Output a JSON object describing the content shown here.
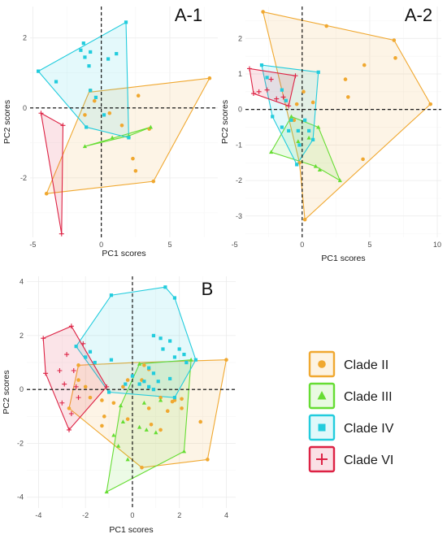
{
  "figure": {
    "legend": [
      {
        "label": "Clade II",
        "color": "#f0a830",
        "marker": "circle"
      },
      {
        "label": "Clade III",
        "color": "#66dd33",
        "marker": "triangle"
      },
      {
        "label": "Clade IV",
        "color": "#22ccdd",
        "marker": "square"
      },
      {
        "label": "Clade VI",
        "color": "#dd2244",
        "marker": "plus"
      }
    ]
  },
  "chart_data": [
    {
      "type": "scatter",
      "title": "A-1",
      "xlabel": "PC1 scores",
      "ylabel": "PC2 scores",
      "xlim": [
        -5.2,
        8.5
      ],
      "ylim": [
        -3.7,
        2.9
      ],
      "xticks": [
        -5,
        0,
        5
      ],
      "yticks": [
        -2,
        0,
        2
      ],
      "grid": true,
      "series": [
        {
          "name": "Clade II",
          "hull": [
            [
              -4,
              -2.45
            ],
            [
              3.8,
              -2.1
            ],
            [
              7.9,
              0.85
            ],
            [
              -0.9,
              0.45
            ]
          ],
          "points": [
            [
              7.9,
              0.85
            ],
            [
              2.7,
              0.35
            ],
            [
              3.5,
              -0.6
            ],
            [
              2.3,
              -1.45
            ],
            [
              2.5,
              -1.8
            ],
            [
              0.6,
              -0.15
            ],
            [
              -0.5,
              0.2
            ],
            [
              -1.2,
              -0.2
            ],
            [
              1.5,
              -0.5
            ],
            [
              -0.8,
              0.5
            ],
            [
              3.8,
              -2.1
            ],
            [
              -4,
              -2.45
            ]
          ]
        },
        {
          "name": "Clade III",
          "hull": [
            [
              -1.2,
              -1.1
            ],
            [
              3.6,
              -0.55
            ],
            [
              2.0,
              -0.8
            ]
          ],
          "points": [
            [
              -1.2,
              -1.1
            ],
            [
              3.6,
              -0.55
            ],
            [
              2.0,
              -0.8
            ],
            [
              0.8,
              -0.85
            ]
          ]
        },
        {
          "name": "Clade IV",
          "hull": [
            [
              -4.6,
              1.05
            ],
            [
              1.8,
              2.45
            ],
            [
              2.0,
              -0.85
            ],
            [
              -1.1,
              -0.55
            ]
          ],
          "points": [
            [
              -4.6,
              1.05
            ],
            [
              1.8,
              2.45
            ],
            [
              -1.3,
              1.85
            ],
            [
              -1.5,
              1.65
            ],
            [
              -1.2,
              1.45
            ],
            [
              -0.8,
              1.6
            ],
            [
              0.5,
              1.4
            ],
            [
              1.1,
              1.55
            ],
            [
              -3.3,
              0.75
            ],
            [
              -0.8,
              0.5
            ],
            [
              -0.4,
              0.3
            ],
            [
              0.2,
              -0.2
            ],
            [
              2.0,
              -0.85
            ],
            [
              -1.1,
              -0.55
            ],
            [
              -0.9,
              1.2
            ]
          ]
        },
        {
          "name": "Clade VI",
          "hull": [
            [
              -4.4,
              -0.15
            ],
            [
              -2.8,
              -0.5
            ],
            [
              -2.9,
              -3.6
            ]
          ],
          "points": [
            [
              -4.4,
              -0.15
            ],
            [
              -2.8,
              -0.5
            ],
            [
              -2.9,
              -3.6
            ]
          ]
        }
      ]
    },
    {
      "type": "scatter",
      "title": "A-2",
      "xlabel": "PC1 scores",
      "ylabel": "PC2 scores",
      "xlim": [
        -4.2,
        10.3
      ],
      "ylim": [
        -3.6,
        2.9
      ],
      "xticks": [
        -5,
        0,
        5,
        10
      ],
      "yticks": [
        -3,
        -2,
        -1,
        0,
        1,
        2
      ],
      "grid": true,
      "series": [
        {
          "name": "Clade II",
          "hull": [
            [
              -2.9,
              2.75
            ],
            [
              6.8,
              1.95
            ],
            [
              9.5,
              0.15
            ],
            [
              0.2,
              -3.1
            ],
            [
              -0.2,
              -1.5
            ]
          ],
          "points": [
            [
              -2.9,
              2.75
            ],
            [
              1.8,
              2.35
            ],
            [
              6.8,
              1.95
            ],
            [
              6.9,
              1.45
            ],
            [
              4.6,
              1.25
            ],
            [
              3.2,
              0.85
            ],
            [
              9.5,
              0.15
            ],
            [
              3.4,
              0.35
            ],
            [
              4.5,
              -1.4
            ],
            [
              0.2,
              -3.1
            ],
            [
              -0.2,
              -1.5
            ],
            [
              0.1,
              0.5
            ],
            [
              -0.4,
              0.15
            ],
            [
              0.8,
              0.2
            ],
            [
              -0.6,
              -0.3
            ]
          ]
        },
        {
          "name": "Clade III",
          "hull": [
            [
              -2.3,
              -1.2
            ],
            [
              -0.8,
              -0.2
            ],
            [
              1.2,
              -0.5
            ],
            [
              2.8,
              -2.0
            ],
            [
              1.0,
              -1.6
            ]
          ],
          "points": [
            [
              -2.3,
              -1.2
            ],
            [
              -0.8,
              -0.2
            ],
            [
              1.2,
              -0.5
            ],
            [
              2.8,
              -2.0
            ],
            [
              1.0,
              -1.6
            ],
            [
              0.5,
              -0.8
            ],
            [
              -0.3,
              -0.9
            ],
            [
              1.3,
              -1.7
            ]
          ]
        },
        {
          "name": "Clade IV",
          "hull": [
            [
              -3.0,
              1.25
            ],
            [
              1.2,
              1.05
            ],
            [
              0.8,
              -0.85
            ],
            [
              -0.4,
              -1.55
            ],
            [
              -2.2,
              -0.2
            ]
          ],
          "points": [
            [
              -3.0,
              1.25
            ],
            [
              1.2,
              1.05
            ],
            [
              0.8,
              -0.85
            ],
            [
              -0.4,
              -1.55
            ],
            [
              -2.2,
              -0.2
            ],
            [
              -2.6,
              0.9
            ],
            [
              -1.5,
              0.55
            ],
            [
              -1.2,
              0.25
            ],
            [
              -0.8,
              -0.3
            ],
            [
              -1.5,
              -0.5
            ],
            [
              -1.0,
              -0.6
            ],
            [
              -0.3,
              -0.6
            ],
            [
              0.2,
              -0.3
            ],
            [
              0.5,
              -0.6
            ],
            [
              -0.2,
              -1.0
            ]
          ]
        },
        {
          "name": "Clade VI",
          "hull": [
            [
              -3.9,
              1.15
            ],
            [
              -0.5,
              0.95
            ],
            [
              -1.0,
              0.1
            ],
            [
              -3.6,
              0.45
            ]
          ],
          "points": [
            [
              -3.9,
              1.15
            ],
            [
              -0.5,
              0.95
            ],
            [
              -1.0,
              0.1
            ],
            [
              -3.6,
              0.45
            ],
            [
              -2.3,
              0.85
            ],
            [
              -1.9,
              0.3
            ],
            [
              -3.2,
              0.5
            ],
            [
              -1.4,
              0.35
            ],
            [
              -2.6,
              0.55
            ]
          ]
        }
      ]
    },
    {
      "type": "scatter",
      "title": "B",
      "xlabel": "PC1 scores",
      "ylabel": "PC2 scores",
      "xlim": [
        -4.5,
        4.4
      ],
      "ylim": [
        -4.4,
        4.2
      ],
      "xticks": [
        -4,
        -2,
        0,
        2,
        4
      ],
      "yticks": [
        -4,
        -2,
        0,
        2,
        4
      ],
      "grid": true,
      "series": [
        {
          "name": "Clade II",
          "hull": [
            [
              -2.7,
              -0.7
            ],
            [
              -2.3,
              0.9
            ],
            [
              0.1,
              1.0
            ],
            [
              4.0,
              1.1
            ],
            [
              3.2,
              -2.6
            ],
            [
              0.4,
              -2.9
            ]
          ],
          "points": [
            [
              -2.7,
              -0.7
            ],
            [
              -2.3,
              0.9
            ],
            [
              4.0,
              1.1
            ],
            [
              3.2,
              -2.6
            ],
            [
              0.4,
              -2.9
            ],
            [
              0.5,
              0.9
            ],
            [
              0.7,
              0.75
            ],
            [
              -0.2,
              0.35
            ],
            [
              0.4,
              0.35
            ],
            [
              -2.3,
              0.35
            ],
            [
              -2.0,
              0.1
            ],
            [
              -1.8,
              -0.3
            ],
            [
              -1.3,
              -0.4
            ],
            [
              -0.8,
              -0.5
            ],
            [
              -0.4,
              0.1
            ],
            [
              0.7,
              -0.7
            ],
            [
              1.2,
              -0.3
            ],
            [
              1.7,
              -0.45
            ],
            [
              1.8,
              -0.4
            ],
            [
              2.1,
              -0.35
            ],
            [
              2.1,
              -0.7
            ],
            [
              1.5,
              -0.8
            ],
            [
              -1.2,
              -1.0
            ],
            [
              -1.3,
              -1.35
            ],
            [
              -0.2,
              -1.1
            ],
            [
              1.2,
              -1.5
            ],
            [
              2.9,
              -1.2
            ],
            [
              0.8,
              -1.3
            ]
          ]
        },
        {
          "name": "Clade III",
          "hull": [
            [
              -1.1,
              -3.8
            ],
            [
              -0.5,
              -0.6
            ],
            [
              0.3,
              0.95
            ],
            [
              2.5,
              1.1
            ],
            [
              2.2,
              -2.3
            ]
          ],
          "points": [
            [
              -1.1,
              -3.8
            ],
            [
              -0.5,
              -0.6
            ],
            [
              0.3,
              0.95
            ],
            [
              2.5,
              1.1
            ],
            [
              2.2,
              -2.3
            ],
            [
              -0.4,
              -1.2
            ],
            [
              -0.8,
              -1.7
            ],
            [
              -0.6,
              -2.1
            ],
            [
              -0.2,
              -2.6
            ],
            [
              0.3,
              -1.4
            ],
            [
              0.6,
              -1.5
            ],
            [
              1.0,
              -1.6
            ],
            [
              0.5,
              -0.5
            ],
            [
              1.2,
              -0.4
            ]
          ]
        },
        {
          "name": "Clade IV",
          "hull": [
            [
              -2.4,
              1.6
            ],
            [
              -0.9,
              3.5
            ],
            [
              1.4,
              3.8
            ],
            [
              1.8,
              3.4
            ],
            [
              2.7,
              1.1
            ],
            [
              1.8,
              -0.3
            ],
            [
              -1.0,
              -0.1
            ]
          ],
          "points": [
            [
              -2.4,
              1.6
            ],
            [
              -0.9,
              3.5
            ],
            [
              1.4,
              3.8
            ],
            [
              1.8,
              3.4
            ],
            [
              2.7,
              1.1
            ],
            [
              1.8,
              -0.3
            ],
            [
              -1.0,
              -0.1
            ],
            [
              -2.0,
              1.2
            ],
            [
              -1.8,
              1.4
            ],
            [
              -1.6,
              1.0
            ],
            [
              -0.9,
              1.1
            ],
            [
              0.9,
              2.0
            ],
            [
              1.2,
              1.9
            ],
            [
              1.6,
              1.8
            ],
            [
              1.3,
              1.5
            ],
            [
              2.0,
              1.5
            ],
            [
              2.2,
              1.3
            ],
            [
              1.8,
              1.2
            ],
            [
              2.3,
              1.0
            ],
            [
              0.7,
              0.8
            ],
            [
              0.9,
              0.6
            ],
            [
              1.1,
              0.3
            ],
            [
              0.5,
              0.3
            ],
            [
              0.7,
              0.1
            ],
            [
              0.9,
              0.0
            ],
            [
              0.0,
              0.5
            ],
            [
              1.6,
              0.4
            ],
            [
              -0.3,
              0.2
            ],
            [
              0.3,
              0.2
            ]
          ]
        },
        {
          "name": "Clade VI",
          "hull": [
            [
              -3.8,
              1.9
            ],
            [
              -2.6,
              2.35
            ],
            [
              -1.1,
              0.1
            ],
            [
              -2.7,
              -1.5
            ],
            [
              -3.7,
              0.6
            ]
          ],
          "points": [
            [
              -3.8,
              1.9
            ],
            [
              -2.6,
              2.35
            ],
            [
              -1.1,
              0.1
            ],
            [
              -2.7,
              -1.5
            ],
            [
              -3.7,
              0.6
            ],
            [
              -2.8,
              1.3
            ],
            [
              -2.1,
              1.7
            ],
            [
              -2.5,
              0.7
            ],
            [
              -2.9,
              0.2
            ],
            [
              -2.4,
              0.1
            ],
            [
              -3.0,
              -0.5
            ],
            [
              -2.6,
              -0.9
            ],
            [
              -3.1,
              0.7
            ],
            [
              -2.3,
              -0.3
            ]
          ]
        }
      ]
    }
  ]
}
